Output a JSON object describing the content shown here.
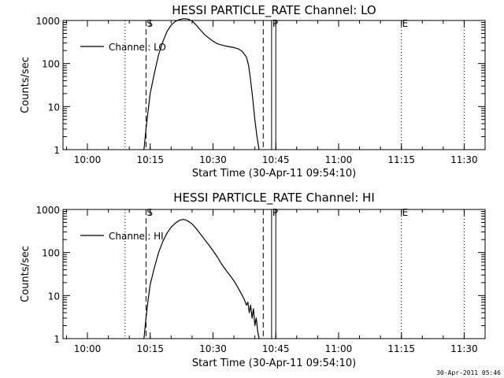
{
  "footer_timestamp": "30-Apr-2011 05:46",
  "chart_data": [
    {
      "type": "line",
      "title": "HESSI PARTICLE_RATE Channel: LO",
      "xlabel": "Start Time (30-Apr-11 09:54:10)",
      "ylabel": "Counts/sec",
      "y_scale": "log",
      "ylim": [
        1,
        1000
      ],
      "xlim": [
        "09:54:10",
        "11:35:00"
      ],
      "x_ticks": [
        "10:00",
        "10:15",
        "10:30",
        "10:45",
        "11:00",
        "11:15",
        "11:30"
      ],
      "y_ticks": [
        "1",
        "10",
        "100",
        "1000"
      ],
      "legend": {
        "position": "top-left",
        "entries": [
          "Channel: LO"
        ]
      },
      "markers": [
        {
          "label": "S",
          "time": "10:14",
          "style": "dashed"
        },
        {
          "label": "P",
          "time": "10:44",
          "style": "solid"
        },
        {
          "label": "E",
          "time": "11:15",
          "style": "dotted"
        }
      ],
      "extra_lines": [
        {
          "time": "10:09",
          "style": "dotted"
        },
        {
          "time": "10:42",
          "style": "dashed"
        },
        {
          "time": "10:45",
          "style": "solid"
        },
        {
          "time": "11:30",
          "style": "dotted"
        }
      ],
      "series": [
        {
          "name": "Channel: LO",
          "points": [
            [
              "10:13:30",
              1
            ],
            [
              "10:14:00",
              3
            ],
            [
              "10:14:30",
              8
            ],
            [
              "10:15:00",
              20
            ],
            [
              "10:16:00",
              60
            ],
            [
              "10:17:00",
              160
            ],
            [
              "10:18:00",
              320
            ],
            [
              "10:19:00",
              550
            ],
            [
              "10:20:00",
              780
            ],
            [
              "10:21:00",
              950
            ],
            [
              "10:22:00",
              1050
            ],
            [
              "10:23:00",
              1100
            ],
            [
              "10:24:00",
              1080
            ],
            [
              "10:25:00",
              980
            ],
            [
              "10:26:00",
              780
            ],
            [
              "10:27:00",
              600
            ],
            [
              "10:28:00",
              470
            ],
            [
              "10:29:00",
              390
            ],
            [
              "10:30:00",
              330
            ],
            [
              "10:31:00",
              290
            ],
            [
              "10:32:00",
              270
            ],
            [
              "10:33:00",
              255
            ],
            [
              "10:34:00",
              245
            ],
            [
              "10:35:00",
              235
            ],
            [
              "10:36:00",
              220
            ],
            [
              "10:37:00",
              190
            ],
            [
              "10:38:00",
              140
            ],
            [
              "10:38:30",
              90
            ],
            [
              "10:39:00",
              40
            ],
            [
              "10:39:30",
              15
            ],
            [
              "10:40:00",
              5
            ],
            [
              "10:40:30",
              2
            ],
            [
              "10:41:00",
              1
            ]
          ]
        }
      ]
    },
    {
      "type": "line",
      "title": "HESSI PARTICLE_RATE Channel: HI",
      "xlabel": "Start Time (30-Apr-11 09:54:10)",
      "ylabel": "Counts/sec",
      "y_scale": "log",
      "ylim": [
        1,
        1000
      ],
      "xlim": [
        "09:54:10",
        "11:35:00"
      ],
      "x_ticks": [
        "10:00",
        "10:15",
        "10:30",
        "10:45",
        "11:00",
        "11:15",
        "11:30"
      ],
      "y_ticks": [
        "1",
        "10",
        "100",
        "1000"
      ],
      "legend": {
        "position": "top-left",
        "entries": [
          "Channel: HI"
        ]
      },
      "markers": [
        {
          "label": "S",
          "time": "10:14",
          "style": "dashed"
        },
        {
          "label": "P",
          "time": "10:44",
          "style": "solid"
        },
        {
          "label": "E",
          "time": "11:15",
          "style": "dotted"
        }
      ],
      "extra_lines": [
        {
          "time": "10:09",
          "style": "dotted"
        },
        {
          "time": "10:42",
          "style": "dashed"
        },
        {
          "time": "10:45",
          "style": "solid"
        },
        {
          "time": "11:30",
          "style": "dotted"
        }
      ],
      "series": [
        {
          "name": "Channel: HI",
          "points": [
            [
              "10:13:30",
              1
            ],
            [
              "10:14:00",
              3
            ],
            [
              "10:14:30",
              8
            ],
            [
              "10:15:00",
              18
            ],
            [
              "10:16:00",
              45
            ],
            [
              "10:17:00",
              100
            ],
            [
              "10:18:00",
              180
            ],
            [
              "10:19:00",
              280
            ],
            [
              "10:20:00",
              390
            ],
            [
              "10:21:00",
              480
            ],
            [
              "10:22:00",
              560
            ],
            [
              "10:23:00",
              590
            ],
            [
              "10:24:00",
              540
            ],
            [
              "10:25:00",
              460
            ],
            [
              "10:26:00",
              360
            ],
            [
              "10:27:00",
              270
            ],
            [
              "10:28:00",
              200
            ],
            [
              "10:29:00",
              150
            ],
            [
              "10:30:00",
              110
            ],
            [
              "10:31:00",
              80
            ],
            [
              "10:32:00",
              55
            ],
            [
              "10:33:00",
              40
            ],
            [
              "10:34:00",
              30
            ],
            [
              "10:35:00",
              22
            ],
            [
              "10:36:00",
              15
            ],
            [
              "10:37:00",
              10
            ],
            [
              "10:37:30",
              8
            ],
            [
              "10:38:00",
              6
            ],
            [
              "10:38:20",
              7
            ],
            [
              "10:38:40",
              4
            ],
            [
              "10:39:00",
              6
            ],
            [
              "10:39:20",
              3
            ],
            [
              "10:39:40",
              5
            ],
            [
              "10:40:00",
              2
            ],
            [
              "10:40:20",
              3
            ],
            [
              "10:40:40",
              1.5
            ],
            [
              "10:41:00",
              1
            ]
          ]
        }
      ]
    }
  ]
}
